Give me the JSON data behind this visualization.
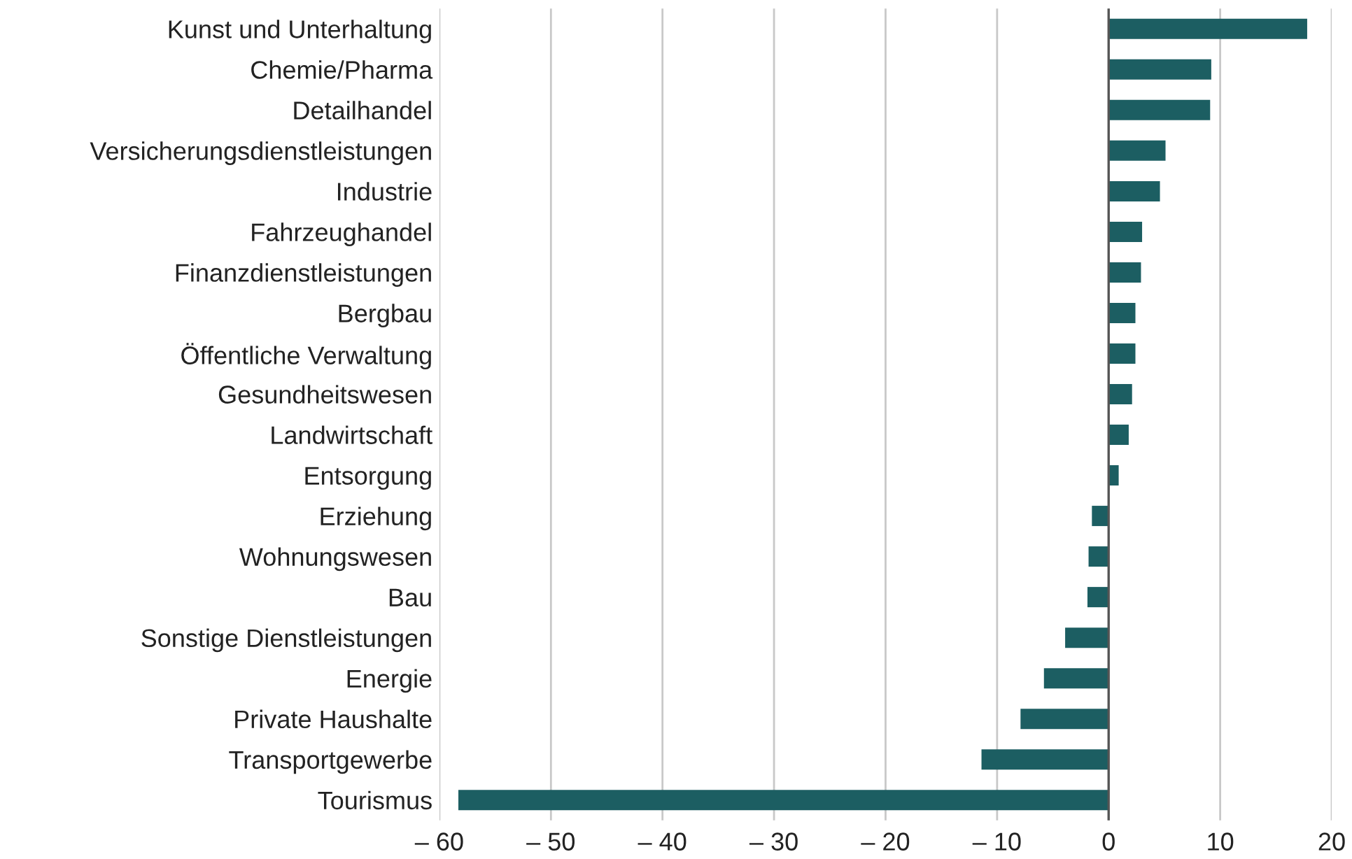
{
  "chart_data": {
    "type": "bar",
    "orientation": "horizontal",
    "categories": [
      "Kunst und Unterhaltung",
      "Chemie/Pharma",
      "Detailhandel",
      "Versicherungsdienstleistungen",
      "Industrie",
      "Fahrzeughandel",
      "Finanzdienstleistungen",
      "Bergbau",
      "Öffentliche Verwaltung",
      "Gesundheitswesen",
      "Landwirtschaft",
      "Entsorgung",
      "Erziehung",
      "Wohnungswesen",
      "Bau",
      "Sonstige Dienstleistungen",
      "Energie",
      "Private Haushalte",
      "Transportgewerbe",
      "Tourismus"
    ],
    "values": [
      17.8,
      9.2,
      9.1,
      5.1,
      4.6,
      3.0,
      2.9,
      2.4,
      2.4,
      2.1,
      1.8,
      0.9,
      -1.5,
      -1.8,
      -1.9,
      -3.9,
      -5.8,
      -7.9,
      -11.4,
      -58.3
    ],
    "color": "#1c5e62",
    "xlim": [
      -60,
      20
    ],
    "xticks": [
      {
        "value": -60,
        "label": "– 60"
      },
      {
        "value": -50,
        "label": "– 50"
      },
      {
        "value": -40,
        "label": "– 40"
      },
      {
        "value": -30,
        "label": "– 30"
      },
      {
        "value": -20,
        "label": "– 20"
      },
      {
        "value": -10,
        "label": "– 10"
      },
      0,
      10,
      20
    ],
    "grid": "x",
    "ref_lines": [
      {
        "axis": "x",
        "value": 0,
        "color": "#555555"
      }
    ]
  }
}
